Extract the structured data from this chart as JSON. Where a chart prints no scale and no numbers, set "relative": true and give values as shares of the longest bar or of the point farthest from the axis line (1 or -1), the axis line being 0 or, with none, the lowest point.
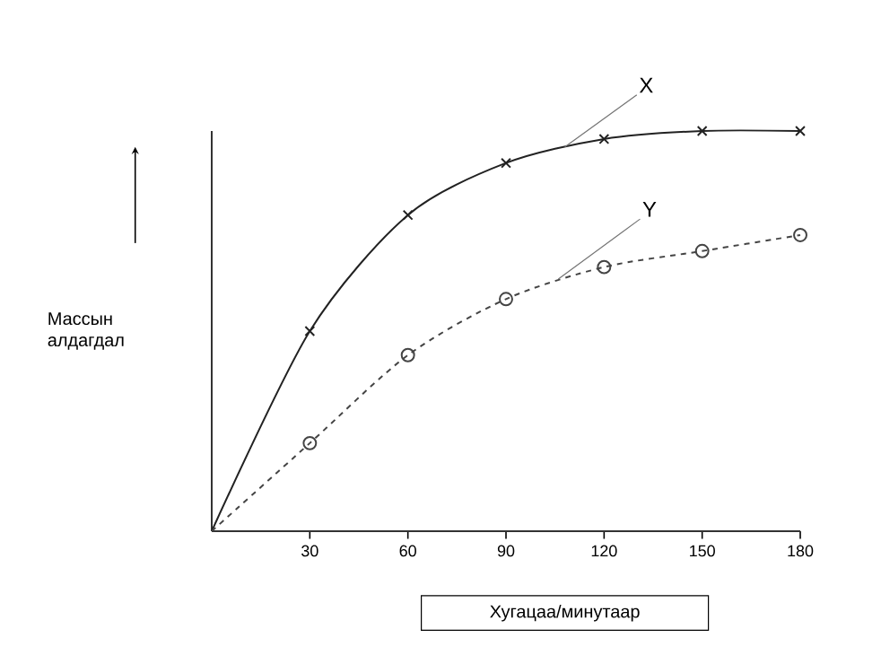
{
  "chart_data": {
    "type": "line",
    "relative": true,
    "xlabel": "Хугацаа/минутаар",
    "ylabel": "Массын алдагдал",
    "x": [
      0,
      30,
      60,
      90,
      120,
      150,
      180
    ],
    "xlim": [
      0,
      180
    ],
    "xticks": [
      30,
      60,
      90,
      120,
      150,
      180
    ],
    "grid": false,
    "series": [
      {
        "name": "X",
        "color": "#222222",
        "marker": "cross",
        "line_style": "solid",
        "values": [
          0,
          0.5,
          0.79,
          0.92,
          0.98,
          1,
          1
        ]
      },
      {
        "name": "Y",
        "color": "#444444",
        "marker": "circle",
        "line_style": "dashed",
        "values": [
          0,
          0.22,
          0.44,
          0.58,
          0.66,
          0.7,
          0.74
        ]
      }
    ]
  }
}
